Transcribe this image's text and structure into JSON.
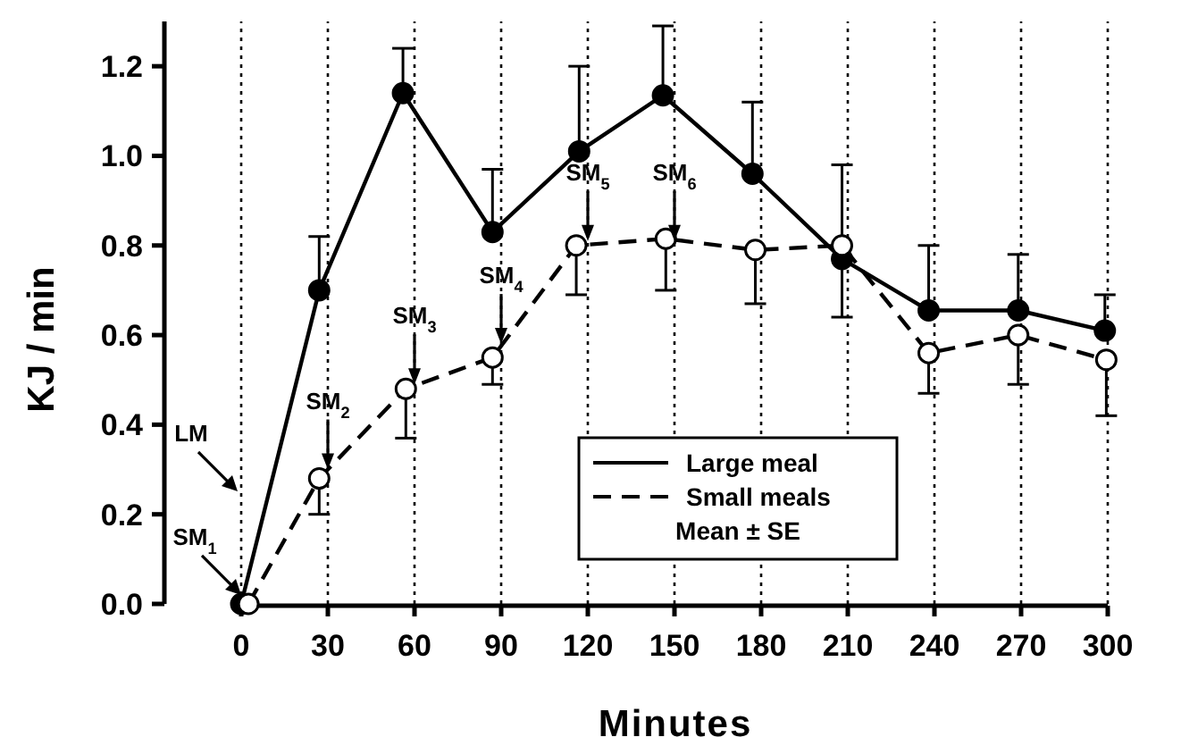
{
  "chart_data": {
    "type": "line",
    "xlabel": "Minutes",
    "ylabel": "KJ / min",
    "legend_title": "Mean ± SE",
    "xlim": [
      0,
      300
    ],
    "ylim": [
      0,
      1.3
    ],
    "xticks": [
      0,
      30,
      60,
      90,
      120,
      150,
      180,
      210,
      240,
      270,
      300
    ],
    "yticks": [
      {
        "value": 0,
        "label": "0.0"
      },
      {
        "value": 0.2,
        "label": "0.2"
      },
      {
        "value": 0.4,
        "label": "0.4"
      },
      {
        "value": 0.6,
        "label": "0.6"
      },
      {
        "value": 0.8,
        "label": "0.8"
      },
      {
        "value": 1,
        "label": "1.0"
      },
      {
        "value": 1.2,
        "label": "1.2"
      }
    ],
    "grid": "x",
    "legend": "bottom right",
    "marker": "circle",
    "series": [
      {
        "name": "Large meal",
        "color": "#000000",
        "line_style": "solid",
        "x": [
          0,
          27,
          56,
          87,
          117,
          146,
          177,
          208,
          238,
          269,
          299
        ],
        "values": [
          0.0,
          0.7,
          1.14,
          0.83,
          1.01,
          1.135,
          0.96,
          0.77,
          0.655,
          0.655,
          0.61
        ],
        "errors": [
          null,
          [
            0.7,
            0.82
          ],
          [
            1.14,
            1.24
          ],
          [
            0.83,
            0.97
          ],
          [
            1.01,
            1.2
          ],
          [
            1.135,
            1.29
          ],
          [
            0.96,
            1.12
          ],
          [
            0.77,
            0.98
          ],
          [
            0.655,
            0.8
          ],
          [
            0.655,
            0.78
          ],
          [
            0.61,
            0.69
          ]
        ]
      },
      {
        "name": "Small meals",
        "color": "#000000",
        "line_style": "dashed",
        "x": [
          2.5,
          27,
          57,
          87,
          116,
          147,
          178,
          208,
          238,
          269,
          299.5
        ],
        "values": [
          0.0,
          0.28,
          0.48,
          0.55,
          0.8,
          0.815,
          0.79,
          0.8,
          0.56,
          0.6,
          0.545
        ],
        "errors": [
          null,
          [
            0.2,
            0.28
          ],
          [
            0.37,
            0.48
          ],
          [
            0.49,
            0.55
          ],
          [
            0.69,
            0.8
          ],
          [
            0.7,
            0.815
          ],
          [
            0.67,
            0.79
          ],
          [
            0.64,
            0.8
          ],
          [
            0.47,
            0.56
          ],
          [
            0.49,
            0.6
          ],
          [
            0.42,
            0.545
          ]
        ]
      }
    ],
    "annotations": [
      "LM",
      {
        "text": "SM$_{1}$",
        "x": 0,
        "y": 0.02
      },
      {
        "text": "SM$_{2}$",
        "x": 30,
        "y": 0.3
      },
      {
        "text": "SM$_{3}$",
        "x": 60,
        "y": 0.49
      },
      {
        "text": "SM$_{4}$",
        "x": 90,
        "y": 0.58
      },
      {
        "text": "SM$_{5}$",
        "x": 120,
        "y": 0.81
      },
      {
        "text": "SM$_{6}$",
        "x": 150,
        "y": 0.81
      }
    ]
  }
}
